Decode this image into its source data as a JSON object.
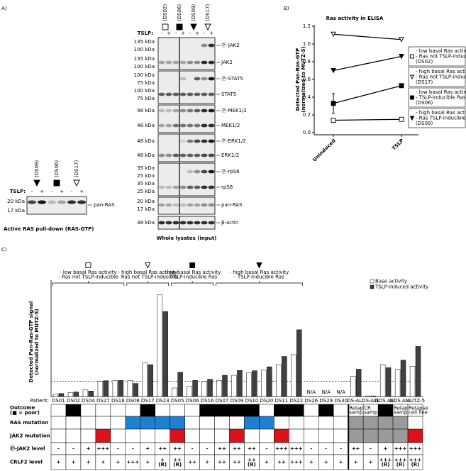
{
  "panel_a": {
    "label": "A)",
    "pulldown": {
      "samples": [
        "(DS09)",
        "(DS06)",
        "(DS17)"
      ],
      "markers": [
        "filled-triangle-down",
        "filled-square",
        "open-triangle-down"
      ],
      "tslp_label": "TSLP:",
      "treatments": [
        "-",
        "+"
      ],
      "kda": [
        "20 kDa",
        "17 kDa"
      ],
      "protein": "pan-RAS",
      "caption": "Active RAS pull-down (RAS-GTP)"
    },
    "lysates": {
      "samples": [
        "(DS02)",
        "(DS06)",
        "(DS09)",
        "(DS17)"
      ],
      "markers": [
        "open-square",
        "filled-square",
        "filled-triangle-down",
        "open-triangle-down"
      ],
      "tslp_label": "TSLP:",
      "treatments": [
        "-",
        "+"
      ],
      "rows": [
        {
          "protein": "Ⓟ-JAK2",
          "kda": [
            "135 kDa",
            "100 kDa"
          ]
        },
        {
          "protein": "JAK2",
          "kda": [
            "135 kDa",
            "100 kDa"
          ]
        },
        {
          "protein": "Ⓟ-STAT5",
          "kda": [
            "100 kDa",
            "75 kDa"
          ]
        },
        {
          "protein": "STAT5",
          "kda": [
            "100 kDa",
            "75 kDa"
          ]
        },
        {
          "protein": "Ⓟ-MEK1/2",
          "kda": [
            "48 kDa"
          ]
        },
        {
          "protein": "MEK1/2",
          "kda": [
            "48 kDa"
          ]
        },
        {
          "protein": "Ⓟ-ERK1/2",
          "kda": [
            "48 kDa"
          ]
        },
        {
          "protein": "ERK1/2",
          "kda": [
            "48 kDa"
          ]
        },
        {
          "protein": "Ⓟ-rpS6",
          "kda": [
            "35 kDa",
            "25 kDa"
          ]
        },
        {
          "protein": "rpS6",
          "kda": [
            "35 kDa",
            "25 kDa"
          ]
        },
        {
          "protein": "pan-RAS",
          "kda": [
            "20 kDa",
            "17 kDa"
          ]
        },
        {
          "protein": "β-actin",
          "kda": [
            "48 kDa"
          ]
        }
      ],
      "caption": "Whole lysates (input)"
    }
  },
  "chart_data": [
    {
      "type": "line",
      "panel_label": "B)",
      "title": "Ras activity in ELISA",
      "y_label": [
        "Detected Pan-Ras-GTP",
        "(normalized to MUTZ-5)"
      ],
      "categories": [
        "Uninduced",
        "TSLP"
      ],
      "ylim": [
        0,
        1.2
      ],
      "yticks": [
        {
          "value": 0,
          "label": "0.0"
        },
        0.2,
        0.4,
        0.6,
        0.8,
        {
          "value": 1,
          "label": "1.0"
        },
        1.2
      ],
      "series": [
        {
          "name": [
            "- low basal Ras activity",
            "- Ras not TSLP-inducible",
            "(DS02)"
          ],
          "marker": "open-square",
          "color": "#000000",
          "values": [
            0.14,
            0.15
          ]
        },
        {
          "name": [
            "- high basal Ras activity",
            "- Ras not TSLP-inducible",
            "(DS17)"
          ],
          "marker": "open-triangle-down",
          "color": "#000000",
          "values": [
            1.11,
            1.05
          ]
        },
        {
          "name": [
            "- low basal Ras activity",
            "- TSLP-inducible Ras",
            "(DS06)"
          ],
          "marker": "filled-square",
          "color": "#000000",
          "values": [
            0.33,
            0.53
          ],
          "errors": [
            0.11,
            0.02
          ]
        },
        {
          "name": [
            "- high basal Ras activity",
            "- Ras TSLP-inducible",
            "(DS09)"
          ],
          "marker": "filled-triangle-down",
          "color": "#000000",
          "values": [
            0.7,
            0.86
          ]
        }
      ]
    },
    {
      "type": "bar",
      "panel_label": "C)",
      "y_label": [
        "Detected Pan-Ras-GTP signal",
        "(normalized to MUTZ-5)"
      ],
      "category_label": "Patient:",
      "categories": [
        "DS01",
        "DS02",
        "DS04",
        "DS27",
        "DS18",
        "DS08",
        "DS17",
        "DS23",
        "DS05",
        "DS06",
        "DS16",
        "DS07",
        "DS09",
        "DS10",
        "DS20",
        "DS11",
        "DS22",
        "DS26",
        "DS29",
        "DS30",
        "DS-ALL",
        "DS-ALL",
        "NDS ALL",
        "NDS ALL",
        "MUTZ-5"
      ],
      "ylim": [
        0,
        3.6
      ],
      "reference_line": 0.5,
      "groups": [
        {
          "marker": "open-square",
          "lines": [
            "- low basal Ras activity",
            "- Ras not TSLP-inducible"
          ]
        },
        {
          "marker": "open-triangle-down",
          "lines": [
            "- high basal Ras activity",
            "- Ras not TSLP-inducible"
          ]
        },
        {
          "marker": "filled-square",
          "lines": [
            "- low basal Ras activity",
            "- TSLP-inducible Ras"
          ]
        },
        {
          "marker": "filled-triangle-down",
          "lines": [
            "- high basal Ras activity",
            "- TSLP-inducible Ras"
          ]
        }
      ],
      "series": [
        {
          "name": "Base activity",
          "color": "#ffffff",
          "values": [
            0.08,
            0.13,
            0.22,
            0.5,
            0.52,
            0.53,
            1.11,
            3.35,
            0.28,
            0.33,
            0.5,
            0.53,
            0.7,
            0.78,
            0.87,
            1.05,
            1.38,
            null,
            null,
            null,
            0.66,
            0.02,
            1.05,
            0.9,
            1.0
          ],
          "value_labels": [
            null,
            null,
            null,
            null,
            null,
            null,
            null,
            null,
            null,
            null,
            null,
            null,
            null,
            null,
            null,
            null,
            null,
            "N/A",
            "N/A",
            "N/A",
            null,
            null,
            null,
            null,
            null
          ]
        },
        {
          "name": "TSLP-induced activity",
          "color": "#404040",
          "values": [
            0.1,
            0.15,
            0.18,
            0.52,
            0.53,
            0.43,
            1.05,
            2.8,
            0.8,
            0.53,
            0.57,
            0.7,
            0.86,
            0.85,
            0.98,
            1.32,
            2.2,
            null,
            null,
            null,
            0.9,
            0.02,
            0.95,
            1.2,
            1.65
          ]
        }
      ]
    }
  ],
  "table": {
    "rows": [
      {
        "label": [
          "Outcome",
          "(■ = poor)"
        ],
        "kind": "fill",
        "cells": [
          null,
          "#000000",
          null,
          null,
          null,
          null,
          "#000000",
          null,
          null,
          null,
          "#000000",
          "#000000",
          "#000000",
          "#000000",
          null,
          "#000000",
          "#000000",
          null,
          "#000000",
          null,
          {
            "text": [
              "Relapse",
              "samples"
            ]
          },
          {
            "text": [
              "CR",
              "samples"
            ]
          },
          "#000000",
          {
            "text": [
              "Relapse",
              "samples"
            ]
          },
          {
            "text": [
              "Relapse",
              "cell line"
            ]
          }
        ]
      },
      {
        "label": [
          "RAS mutation"
        ],
        "kind": "fill",
        "cells": [
          null,
          null,
          null,
          null,
          null,
          "#1f7fd0",
          "#1f7fd0",
          "#1f7fd0",
          "#1f7fd0",
          null,
          null,
          null,
          null,
          "#1f7fd0",
          "#1f7fd0",
          null,
          null,
          null,
          null,
          null,
          "#9a9a9a",
          "#9a9a9a",
          "#9a9a9a",
          "#9a9a9a",
          null
        ]
      },
      {
        "label": [
          "JAK2 mutation"
        ],
        "kind": "fill",
        "cells": [
          null,
          null,
          null,
          "#d9121b",
          null,
          null,
          null,
          null,
          "#d9121b",
          null,
          null,
          null,
          "#d9121b",
          null,
          null,
          "#d9121b",
          null,
          null,
          null,
          null,
          "#9a9a9a",
          "#9a9a9a",
          "#9a9a9a",
          "#9a9a9a",
          "#d9121b"
        ]
      },
      {
        "label": [
          "Ⓟ-JAK2 level"
        ],
        "kind": "text",
        "color": "#d9121b",
        "cells": [
          "-",
          "-",
          "+",
          "+++",
          "-",
          "-",
          "+",
          "++",
          "++",
          "-",
          "-",
          "++",
          "++",
          "++",
          "-",
          "+++",
          "+++",
          "-",
          "-",
          "-",
          "++",
          "-",
          "+",
          "+++",
          "+++"
        ]
      },
      {
        "label": [
          "CRLF2 level"
        ],
        "kind": "text",
        "color": "#000000",
        "cells": [
          "+",
          "+",
          "+",
          "+",
          "+",
          "+++",
          "+",
          [
            "+",
            "(R)"
          ],
          [
            "++",
            "(R)"
          ],
          "++",
          "+",
          "++",
          "++",
          [
            "++",
            "(R)"
          ],
          "+",
          "++",
          "+++",
          "+",
          "+",
          "+",
          "+",
          "+",
          [
            "+++",
            "(R)"
          ],
          [
            "+++",
            "(R)"
          ],
          [
            "+++",
            "(R)"
          ]
        ]
      }
    ]
  }
}
